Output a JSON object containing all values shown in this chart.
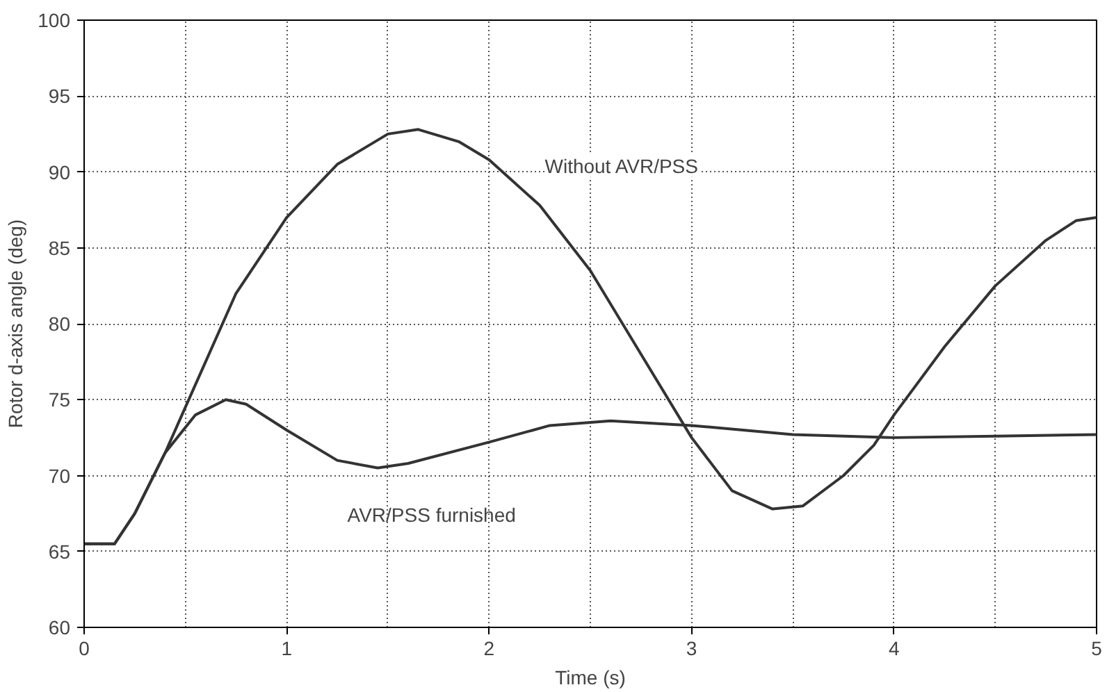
{
  "chart_data": {
    "type": "line",
    "xlabel": "Time (s)",
    "ylabel": "Rotor d-axis angle (deg)",
    "xlim": [
      0,
      5
    ],
    "xticks": [
      0,
      1,
      2,
      3,
      4,
      5
    ],
    "ylim": [
      60,
      100
    ],
    "yticks": [
      60,
      65,
      70,
      75,
      80,
      85,
      90,
      95,
      100
    ],
    "grid": true,
    "line_style": "solid",
    "marker": "none",
    "series": [
      {
        "color": "#333333",
        "x": [
          0,
          0.15,
          0.25,
          0.4,
          0.5,
          0.75,
          1.0,
          1.25,
          1.5,
          1.65,
          1.85,
          2.0,
          2.25,
          2.5,
          2.75,
          3.0,
          3.2,
          3.4,
          3.55,
          3.75,
          3.9,
          4.0,
          4.25,
          4.5,
          4.75,
          4.9,
          5.0
        ],
        "values": [
          65.5,
          65.5,
          67.5,
          71.5,
          74.5,
          82,
          87,
          90.5,
          92.5,
          92.8,
          92,
          90.8,
          87.8,
          83.5,
          78,
          72.5,
          69,
          67.8,
          68,
          70,
          72,
          74,
          78.5,
          82.5,
          85.5,
          86.8,
          87
        ]
      },
      {
        "color": "#333333",
        "x": [
          0,
          0.15,
          0.25,
          0.4,
          0.55,
          0.7,
          0.8,
          1.0,
          1.25,
          1.45,
          1.6,
          2.0,
          2.3,
          2.6,
          3.0,
          3.5,
          4.0,
          4.5,
          5.0
        ],
        "values": [
          65.5,
          65.5,
          67.5,
          71.5,
          74,
          75,
          74.7,
          73,
          71,
          70.5,
          70.8,
          72.2,
          73.3,
          73.6,
          73.3,
          72.7,
          72.5,
          72.6,
          72.7
        ]
      }
    ],
    "annotations": [
      "Without AVR/PSS",
      "AVR/PSS furnished"
    ]
  }
}
